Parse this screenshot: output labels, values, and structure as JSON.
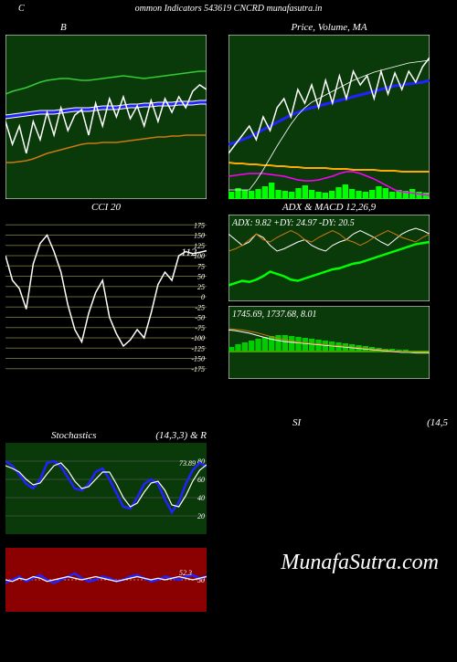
{
  "header": {
    "left_label": "C",
    "text": "ommon Indicators 543619 CNCRD munafasutra.in"
  },
  "watermark": "MunafaSutra.com",
  "panels": {
    "bollinger": {
      "title": "B",
      "bg": "#0a3a0a",
      "border": "#ffffff",
      "upper_color": "#33cc33",
      "mid_color": "#2222ff",
      "lower_color": "#cc7711",
      "price_color": "#ffffff",
      "upper": [
        65,
        62,
        60,
        58,
        55,
        52,
        50,
        49,
        48,
        48,
        49,
        50,
        50,
        49,
        48,
        47,
        46,
        45,
        46,
        47,
        48,
        47,
        46,
        45,
        44,
        43,
        42,
        41,
        40,
        40
      ],
      "mid": [
        90,
        89,
        88,
        87,
        86,
        85,
        85,
        85,
        84,
        83,
        82,
        82,
        82,
        81,
        80,
        80,
        80,
        79,
        78,
        78,
        77,
        77,
        76,
        76,
        76,
        75,
        75,
        75,
        74,
        74
      ],
      "lower": [
        140,
        140,
        139,
        138,
        136,
        133,
        130,
        128,
        126,
        124,
        122,
        120,
        119,
        119,
        118,
        118,
        118,
        117,
        116,
        115,
        114,
        113,
        112,
        112,
        111,
        111,
        110,
        110,
        110,
        110
      ],
      "price": [
        95,
        120,
        100,
        130,
        95,
        115,
        85,
        110,
        80,
        105,
        88,
        82,
        110,
        75,
        100,
        70,
        90,
        68,
        92,
        78,
        100,
        72,
        95,
        70,
        85,
        68,
        80,
        62,
        55,
        60
      ]
    },
    "pricema": {
      "title": "Price, Volume, MA",
      "bg": "#0a3a0a",
      "border": "#ffffff",
      "ma1_color": "#2222ff",
      "ma2_color": "#ffffff",
      "price_color": "#ffffff",
      "vol_bar_color": "#00ff00",
      "vol_line1_color": "#ffaa00",
      "vol_line2_color": "#ff00ff",
      "ma1": [
        120,
        118,
        115,
        112,
        108,
        104,
        100,
        96,
        92,
        88,
        85,
        82,
        80,
        78,
        76,
        74,
        72,
        70,
        68,
        66,
        64,
        62,
        60,
        58,
        56,
        55,
        54,
        53,
        52,
        50
      ],
      "price": [
        130,
        120,
        110,
        100,
        115,
        90,
        105,
        80,
        70,
        90,
        60,
        75,
        55,
        80,
        50,
        75,
        45,
        70,
        40,
        55,
        45,
        70,
        40,
        65,
        42,
        60,
        40,
        52,
        35,
        25
      ],
      "curve": [
        170,
        170,
        170,
        170,
        160,
        148,
        135,
        122,
        110,
        98,
        88,
        80,
        74,
        70,
        66,
        62,
        58,
        54,
        50,
        47,
        44,
        41,
        39,
        37,
        35,
        33,
        31,
        30,
        29,
        28
      ],
      "vol_bars": [
        8,
        12,
        10,
        9,
        11,
        14,
        18,
        10,
        9,
        8,
        12,
        15,
        10,
        8,
        7,
        9,
        13,
        16,
        11,
        9,
        8,
        10,
        14,
        12,
        8,
        10,
        9,
        11,
        8,
        7
      ],
      "vol_line1": [
        140,
        141,
        141,
        142,
        142,
        143,
        143,
        144,
        144,
        145,
        145,
        146,
        146,
        146,
        146,
        147,
        147,
        147,
        148,
        148,
        148,
        148,
        149,
        149,
        149,
        150,
        150,
        150,
        150,
        150
      ],
      "vol_line2": [
        155,
        154,
        153,
        152,
        152,
        152,
        153,
        154,
        155,
        157,
        159,
        160,
        160,
        159,
        157,
        155,
        152,
        150,
        150,
        152,
        155,
        158,
        162,
        166,
        170,
        172,
        173,
        174,
        175,
        176
      ]
    },
    "cci": {
      "title": "CCI 20",
      "bg": "#000000",
      "grid_color": "#666633",
      "line_color": "#ffffff",
      "label_color": "#ffffff",
      "current_value": "112",
      "gridlines": [
        175,
        150,
        125,
        100,
        75,
        50,
        25,
        0,
        -25,
        -50,
        -75,
        -100,
        -125,
        -150,
        -175
      ],
      "data": [
        100,
        40,
        20,
        -30,
        80,
        130,
        150,
        110,
        60,
        -20,
        -80,
        -110,
        -40,
        10,
        40,
        -50,
        -90,
        -120,
        -105,
        -80,
        -100,
        -40,
        30,
        60,
        40,
        100,
        110,
        105,
        108,
        112
      ]
    },
    "adx": {
      "title": "ADX   & MACD 12,26,9",
      "title_right_offset": true,
      "bg": "#0a3a0a",
      "border": "#ffffff",
      "header_text": "ADX: 9.82 +DY: 24.97 -DY: 20.5",
      "adx_color": "#00ff00",
      "pdy_color": "#ffffff",
      "ndy_color": "#cc7711",
      "adx": [
        10,
        12,
        14,
        13,
        15,
        18,
        22,
        20,
        18,
        15,
        14,
        16,
        18,
        20,
        22,
        24,
        25,
        27,
        29,
        30,
        32,
        34,
        36,
        38,
        40,
        42,
        44,
        46,
        47,
        48
      ],
      "pdy": [
        55,
        50,
        45,
        48,
        55,
        52,
        45,
        40,
        42,
        45,
        48,
        50,
        45,
        42,
        40,
        45,
        48,
        50,
        55,
        58,
        55,
        52,
        48,
        45,
        50,
        55,
        58,
        60,
        58,
        55
      ],
      "ndy": [
        40,
        42,
        45,
        50,
        55,
        50,
        48,
        52,
        55,
        58,
        55,
        50,
        48,
        52,
        55,
        58,
        55,
        50,
        48,
        45,
        48,
        52,
        55,
        58,
        55,
        52,
        50,
        48,
        52,
        55
      ]
    },
    "macd": {
      "bg": "#0a3a0a",
      "border": "#ffffff",
      "header_text": "1745.69, 1737.68, 8.01",
      "hist_color": "#00cc00",
      "line1_color": "#ffffff",
      "line2_color": "#cc7711",
      "zero_color": "#cccc00",
      "hist": [
        5,
        8,
        10,
        12,
        14,
        16,
        17,
        18,
        18,
        17,
        16,
        15,
        14,
        13,
        12,
        11,
        10,
        9,
        8,
        7,
        6,
        5,
        4,
        3,
        3,
        2,
        2,
        1,
        1,
        1
      ],
      "line1": [
        12,
        13,
        15,
        17,
        20,
        23,
        26,
        28,
        30,
        31,
        32,
        33,
        34,
        35,
        36,
        37,
        38,
        39,
        40,
        41,
        42,
        43,
        44,
        45,
        46,
        47,
        47,
        48,
        48,
        48
      ],
      "line2": [
        10,
        11,
        12,
        14,
        16,
        19,
        22,
        25,
        27,
        29,
        31,
        32,
        33,
        34,
        35,
        36,
        37,
        38,
        39,
        40,
        41,
        42,
        43,
        44,
        45,
        46,
        46,
        47,
        47,
        47
      ]
    },
    "stoch": {
      "title": "Stochastics",
      "title2": "(14,3,3) & R",
      "bg": "#0a3a0a",
      "grid_color": "#666666",
      "k_color": "#2222ff",
      "d_color": "#ffffff",
      "gridlines": [
        80,
        60,
        40,
        20
      ],
      "current": "73.89",
      "k": [
        80,
        75,
        65,
        55,
        50,
        60,
        78,
        80,
        74,
        62,
        50,
        48,
        55,
        68,
        72,
        60,
        45,
        30,
        28,
        40,
        55,
        60,
        55,
        38,
        24,
        35,
        55,
        70,
        78,
        74
      ],
      "d": [
        75,
        72,
        68,
        60,
        54,
        56,
        66,
        75,
        78,
        70,
        58,
        50,
        52,
        60,
        68,
        68,
        55,
        40,
        30,
        34,
        46,
        56,
        58,
        48,
        32,
        30,
        42,
        58,
        70,
        76
      ]
    },
    "rsi": {
      "title": "SI",
      "title2": "(14,5",
      "bg": "#8b0000",
      "grid_color": "#ffffff",
      "line1_color": "#2222ff",
      "line2_color": "#ffffff",
      "current": "52.3",
      "gridlines": [
        50
      ],
      "fifty_label": "50",
      "line1": [
        48,
        50,
        52,
        49,
        51,
        53,
        50,
        48,
        50,
        52,
        54,
        51,
        49,
        50,
        52,
        51,
        49,
        50,
        52,
        53,
        51,
        49,
        50,
        52,
        51,
        50,
        52,
        53,
        51,
        52
      ],
      "line2": [
        50,
        49,
        51,
        50,
        52,
        51,
        49,
        50,
        51,
        52,
        51,
        50,
        51,
        52,
        51,
        50,
        49,
        50,
        51,
        52,
        51,
        50,
        51,
        50,
        51,
        52,
        51,
        50,
        51,
        52
      ]
    }
  }
}
